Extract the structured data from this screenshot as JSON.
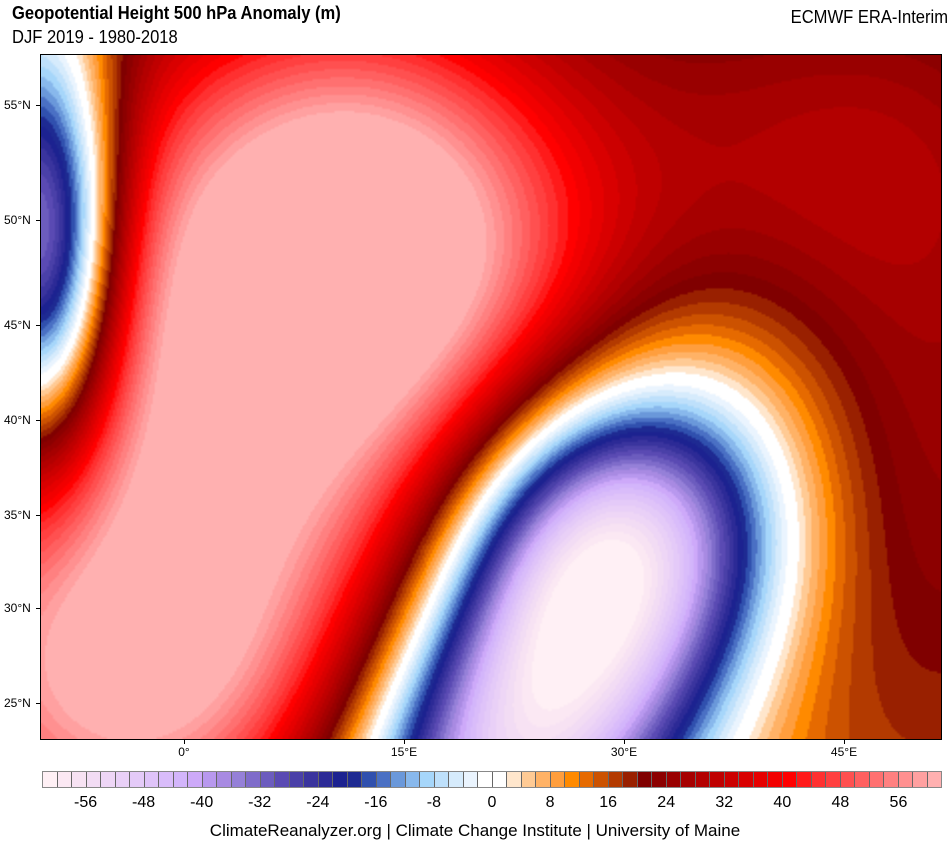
{
  "header": {
    "title": "Geopotential Height 500 hPa Anomaly (m)",
    "subtitle": "DJF 2019 - 1980-2018",
    "source": "ECMWF ERA-Interim"
  },
  "map": {
    "lat_labels": [
      "55°N",
      "50°N",
      "45°N",
      "40°N",
      "35°N",
      "30°N",
      "25°N"
    ],
    "lon_labels": [
      "0°",
      "15°E",
      "30°E",
      "45°E"
    ]
  },
  "colorbar": {
    "min": -62,
    "max": 62,
    "step": 2,
    "tick_labels": [
      "-56",
      "-48",
      "-40",
      "-32",
      "-24",
      "-16",
      "-8",
      "0",
      "8",
      "16",
      "24",
      "32",
      "40",
      "48",
      "56"
    ],
    "colors": [
      "#fff0f5",
      "#fbe8f3",
      "#f7e2f3",
      "#f2dcf4",
      "#eed6f6",
      "#e9d0f7",
      "#e4caf8",
      "#dfc3f9",
      "#d9bcfa",
      "#d3b5fb",
      "#cda9f9",
      "#b898ee",
      "#a88ae2",
      "#9580d8",
      "#7f6cca",
      "#6c5cbe",
      "#5a4ab3",
      "#4a40a8",
      "#3a349e",
      "#2c2a96",
      "#1c2290",
      "#1e2a92",
      "#3050ae",
      "#4a70c4",
      "#6a98da",
      "#88b8ec",
      "#a6d6fa",
      "#bee0fb",
      "#d6ebfc",
      "#eaf4fe",
      "#ffffff",
      "#ffffff",
      "#ffe6cc",
      "#ffca94",
      "#ffb266",
      "#ff9e3d",
      "#ff8a00",
      "#e66a00",
      "#cc5200",
      "#b33a00",
      "#992000",
      "#800000",
      "#8c0000",
      "#990000",
      "#a60000",
      "#b30000",
      "#bf0000",
      "#cc0000",
      "#d90000",
      "#e60000",
      "#f20000",
      "#ff0000",
      "#ff1a1a",
      "#ff3030",
      "#ff4040",
      "#ff5050",
      "#ff6060",
      "#ff7070",
      "#ff8080",
      "#ff9090",
      "#ffa0a0",
      "#ffb0b0"
    ]
  },
  "footer": {
    "credit": "ClimateReanalyzer.org | Climate Change Institute | University of Maine"
  }
}
